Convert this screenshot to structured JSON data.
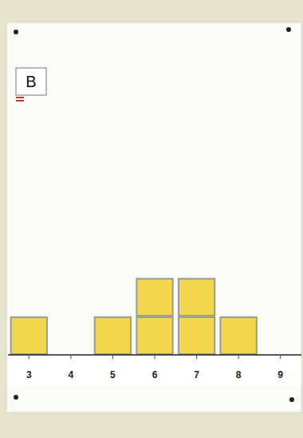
{
  "chart_data": {
    "type": "bar",
    "title": "B",
    "x": [
      3,
      4,
      5,
      6,
      7,
      8,
      9
    ],
    "values": [
      1,
      0,
      1,
      2,
      2,
      1,
      0
    ],
    "color": "#f2d64b",
    "xlim": [
      2.5,
      9.5
    ],
    "xticks": [
      3,
      4,
      5,
      6,
      7,
      8,
      9
    ],
    "ylim": [
      0,
      8.6
    ],
    "tick_labels": "x"
  }
}
